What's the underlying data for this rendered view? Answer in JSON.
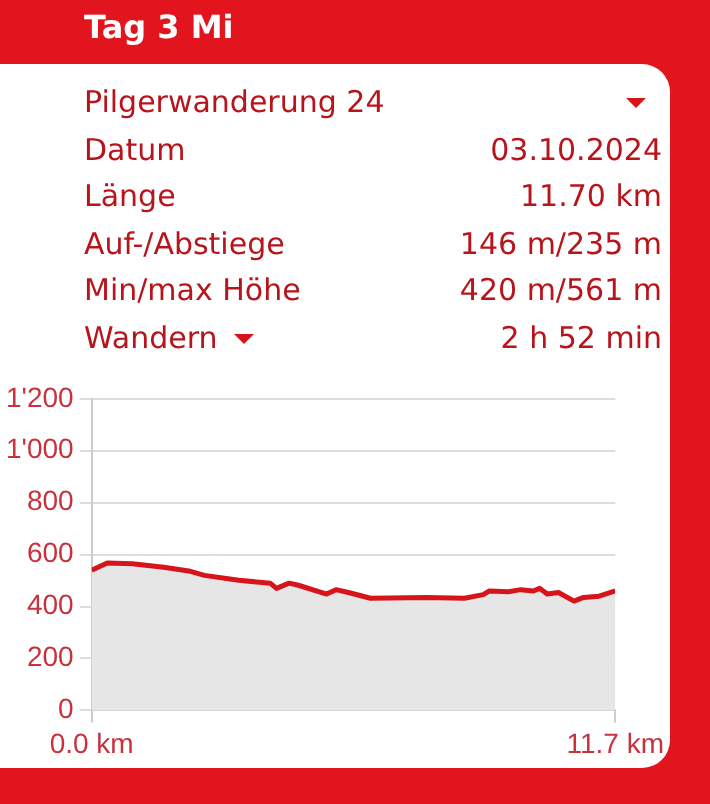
{
  "chart_data": {
    "type": "area",
    "title": "Tag 3 Mi",
    "annotations": [
      "Pilgerwanderung 24",
      "Datum",
      "03.10.2024",
      "Länge",
      "11.70 km",
      "Auf-/Abstiege",
      "146 m/235 m",
      "Min/max Höhe",
      "420 m/561 m",
      "Wandern",
      "2 h 52 min"
    ],
    "x": [
      0,
      0.35,
      0.91,
      1.61,
      2.17,
      2.52,
      3.29,
      3.99,
      4.13,
      4.41,
      4.62,
      5.25,
      5.46,
      5.74,
      6.23,
      7.49,
      8.33,
      8.75,
      8.89,
      9.31,
      9.59,
      9.87,
      10.01,
      10.18,
      10.43,
      10.78,
      10.99,
      11.34,
      11.7
    ],
    "series": [
      {
        "color": "#d7141a",
        "values": [
          540,
          568,
          565,
          551,
          537,
          520,
          501,
          490,
          470,
          490,
          482,
          448,
          465,
          454,
          432,
          435,
          432,
          446,
          460,
          457,
          465,
          460,
          470,
          448,
          454,
          421,
          435,
          440,
          460
        ]
      }
    ],
    "xlim": [
      0,
      11.7
    ],
    "xticks": [
      {
        "value": 0,
        "label": "0.0 km"
      },
      {
        "value": 11.7,
        "label": "11.7 km"
      }
    ],
    "ylim": [
      0,
      1200
    ],
    "yticks": [
      0,
      200,
      400,
      600,
      800,
      {
        "value": 1000,
        "label": "1'000"
      },
      {
        "value": 1200,
        "label": "1'200"
      }
    ],
    "grid": "y",
    "legend": false
  }
}
